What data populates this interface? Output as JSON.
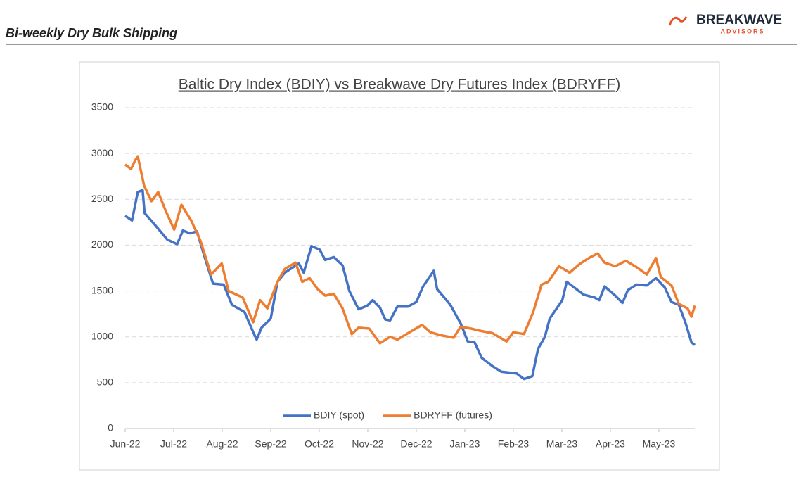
{
  "header": {
    "title": "Bi-weekly Dry Bulk Shipping",
    "logo": "BREAKWAVE",
    "logo_sub": "ADVISORS"
  },
  "chart_data": {
    "type": "line",
    "title": "Baltic Dry Index (BDIY) vs Breakwave Dry Futures Index (BDRYFF)",
    "xlim": [
      0,
      11.74
    ],
    "xticks": [
      {
        "value": 0,
        "label": "Jun-22"
      },
      {
        "value": 1,
        "label": "Jul-22"
      },
      {
        "value": 2,
        "label": "Aug-22"
      },
      {
        "value": 3,
        "label": "Sep-22"
      },
      {
        "value": 4,
        "label": "Oct-22"
      },
      {
        "value": 5,
        "label": "Nov-22"
      },
      {
        "value": 6,
        "label": "Dec-22"
      },
      {
        "value": 7,
        "label": "Jan-23"
      },
      {
        "value": 8,
        "label": "Feb-23"
      },
      {
        "value": 9,
        "label": "Mar-23"
      },
      {
        "value": 10,
        "label": "Apr-23"
      },
      {
        "value": 11,
        "label": "May-23"
      }
    ],
    "ylim": [
      0,
      3500
    ],
    "yticks": [
      0,
      500,
      1000,
      1500,
      2000,
      2500,
      3000,
      3500
    ],
    "grid": true,
    "legend": "bottom",
    "series": [
      {
        "name": "BDIY (spot)",
        "color": "#4472c4",
        "x": [
          0,
          0.14,
          0.26,
          0.36,
          0.4,
          0.6,
          0.87,
          1.07,
          1.19,
          1.33,
          1.48,
          1.62,
          1.81,
          2.03,
          2.2,
          2.46,
          2.64,
          2.71,
          2.81,
          3.0,
          3.14,
          3.29,
          3.58,
          3.68,
          3.84,
          4.01,
          4.12,
          4.3,
          4.48,
          4.62,
          4.81,
          4.99,
          5.1,
          5.25,
          5.36,
          5.46,
          5.61,
          5.83,
          6.0,
          6.14,
          6.36,
          6.43,
          6.7,
          6.91,
          7.06,
          7.2,
          7.35,
          7.57,
          7.75,
          8.07,
          8.22,
          8.39,
          8.51,
          8.65,
          8.75,
          9.01,
          9.1,
          9.3,
          9.45,
          9.67,
          9.77,
          9.88,
          10.1,
          10.25,
          10.36,
          10.54,
          10.75,
          10.94,
          11.12,
          11.26,
          11.41,
          11.55,
          11.67,
          11.74
        ],
        "values": [
          2320,
          2270,
          2580,
          2600,
          2350,
          2230,
          2060,
          2010,
          2160,
          2130,
          2150,
          1900,
          1580,
          1570,
          1350,
          1270,
          1050,
          970,
          1100,
          1200,
          1600,
          1700,
          1800,
          1700,
          1990,
          1950,
          1840,
          1870,
          1780,
          1500,
          1300,
          1340,
          1400,
          1320,
          1190,
          1180,
          1330,
          1330,
          1380,
          1550,
          1720,
          1520,
          1350,
          1150,
          950,
          940,
          770,
          680,
          620,
          600,
          540,
          570,
          870,
          1000,
          1200,
          1400,
          1600,
          1520,
          1460,
          1430,
          1400,
          1550,
          1450,
          1370,
          1510,
          1570,
          1560,
          1640,
          1540,
          1380,
          1350,
          1150,
          940,
          910
        ]
      },
      {
        "name": "BDRYFF (futures)",
        "color": "#ed7d31",
        "x": [
          0,
          0.12,
          0.2,
          0.26,
          0.39,
          0.54,
          0.68,
          0.83,
          1.01,
          1.16,
          1.36,
          1.55,
          1.77,
          1.99,
          2.13,
          2.42,
          2.64,
          2.78,
          2.93,
          3.14,
          3.29,
          3.51,
          3.65,
          3.8,
          3.97,
          4.12,
          4.3,
          4.48,
          4.67,
          4.81,
          5.03,
          5.25,
          5.46,
          5.61,
          5.86,
          6.12,
          6.29,
          6.48,
          6.77,
          6.91,
          7.13,
          7.28,
          7.57,
          7.86,
          8.0,
          8.22,
          8.41,
          8.58,
          8.72,
          8.94,
          9.16,
          9.38,
          9.59,
          9.74,
          9.88,
          10.1,
          10.32,
          10.54,
          10.75,
          10.94,
          11.04,
          11.26,
          11.41,
          11.59,
          11.67,
          11.74
        ],
        "values": [
          2880,
          2830,
          2920,
          2970,
          2650,
          2480,
          2580,
          2380,
          2170,
          2440,
          2270,
          2050,
          1680,
          1800,
          1500,
          1430,
          1160,
          1400,
          1310,
          1600,
          1740,
          1810,
          1600,
          1640,
          1520,
          1450,
          1470,
          1310,
          1030,
          1100,
          1090,
          930,
          1000,
          970,
          1050,
          1130,
          1050,
          1020,
          990,
          1110,
          1090,
          1070,
          1040,
          950,
          1050,
          1030,
          1270,
          1570,
          1600,
          1770,
          1700,
          1800,
          1870,
          1910,
          1810,
          1770,
          1830,
          1760,
          1680,
          1860,
          1650,
          1560,
          1360,
          1310,
          1220,
          1340
        ]
      }
    ]
  }
}
